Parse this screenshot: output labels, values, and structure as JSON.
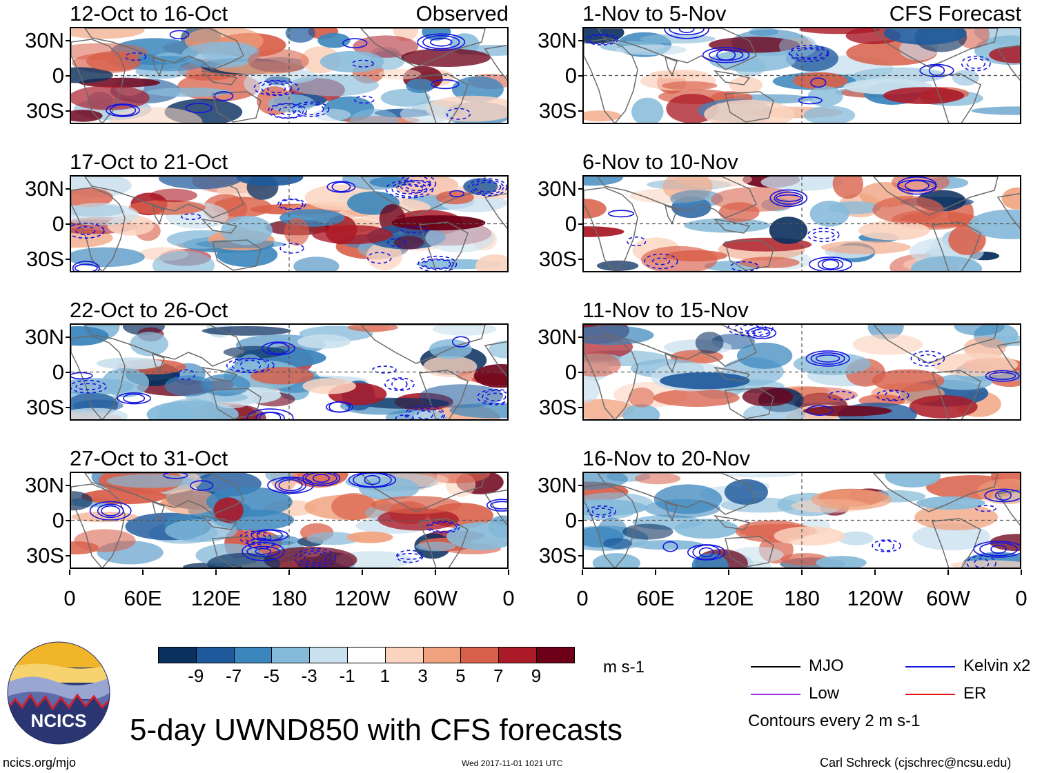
{
  "chart_data": {
    "type": "heatmap",
    "title": "5-day UWND850 with CFS forecasts",
    "variable": "UWND850",
    "units": "m s-1",
    "contour_note": "Contours every 2 m s-1",
    "x_ticks": [
      "0",
      "60E",
      "120E",
      "180",
      "120W",
      "60W",
      "0"
    ],
    "y_ticks": [
      "30N",
      "0",
      "30S"
    ],
    "column_labels": {
      "observed": "Observed",
      "forecast": "CFS Forecast"
    },
    "panels": [
      {
        "period": "12-Oct to 16-Oct",
        "source": "Observed"
      },
      {
        "period": "17-Oct to 21-Oct",
        "source": "Observed"
      },
      {
        "period": "22-Oct to 26-Oct",
        "source": "Observed"
      },
      {
        "period": "27-Oct to 31-Oct",
        "source": "Observed"
      },
      {
        "period": "1-Nov to 5-Nov",
        "source": "CFS Forecast"
      },
      {
        "period": "6-Nov to 10-Nov",
        "source": "CFS Forecast"
      },
      {
        "period": "11-Nov to 15-Nov",
        "source": "CFS Forecast"
      },
      {
        "period": "16-Nov to 20-Nov",
        "source": "CFS Forecast"
      }
    ],
    "colorbar": {
      "tick_labels": [
        "-9",
        "-7",
        "-5",
        "-3",
        "-1",
        "1",
        "3",
        "5",
        "7",
        "9"
      ],
      "colors": [
        "#0b2f5e",
        "#1f5a9c",
        "#3b86bd",
        "#86bad9",
        "#c9e0ee",
        "#ffffff",
        "#fbd4c0",
        "#f0a27e",
        "#d9604a",
        "#ab1a27",
        "#6d0018"
      ]
    },
    "legend": [
      {
        "label": "MJO",
        "color": "#000000"
      },
      {
        "label": "Kelvin x2",
        "color": "#1414e0"
      },
      {
        "label": "Low",
        "color": "#9a30d8"
      },
      {
        "label": "ER",
        "color": "#e01414"
      }
    ]
  },
  "branding": {
    "logo_text": "NCICS",
    "url": "ncics.org/mjo",
    "timestamp": "Wed 2017-11-01 1021 UTC",
    "credit": "Carl Schreck (cjschrec@ncsu.edu)"
  }
}
